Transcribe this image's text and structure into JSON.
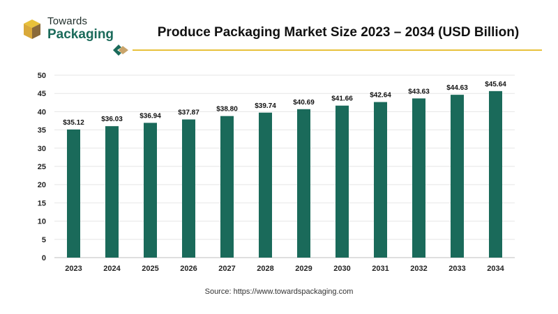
{
  "brand": {
    "line1": "Towards",
    "line2": "Packaging",
    "colors": {
      "dark": "#1a6a5a",
      "accent": "#e8c13a",
      "brown": "#8a6a3a"
    }
  },
  "title": "Produce Packaging Market Size 2023 – 2034 (USD Billion)",
  "source": "Source: https://www.towardspackaging.com",
  "chart_data": {
    "type": "bar",
    "title": "Produce Packaging Market Size 2023 – 2034 (USD Billion)",
    "xlabel": "",
    "ylabel": "",
    "categories": [
      "2023",
      "2024",
      "2025",
      "2026",
      "2027",
      "2028",
      "2029",
      "2030",
      "2031",
      "2032",
      "2033",
      "2034"
    ],
    "values": [
      35.12,
      36.03,
      36.94,
      37.87,
      38.8,
      39.74,
      40.69,
      41.66,
      42.64,
      43.63,
      44.63,
      45.64
    ],
    "data_labels": [
      "$35.12",
      "$36.03",
      "$36.94",
      "$37.87",
      "$38.80",
      "$39.74",
      "$40.69",
      "$41.66",
      "$42.64",
      "$43.63",
      "$44.63",
      "$45.64"
    ],
    "ylim": [
      0,
      50
    ],
    "yticks": [
      0,
      5,
      10,
      15,
      20,
      25,
      30,
      35,
      40,
      45,
      50
    ],
    "grid": true,
    "legend": "none",
    "bar_color": "#1a6a5a"
  }
}
